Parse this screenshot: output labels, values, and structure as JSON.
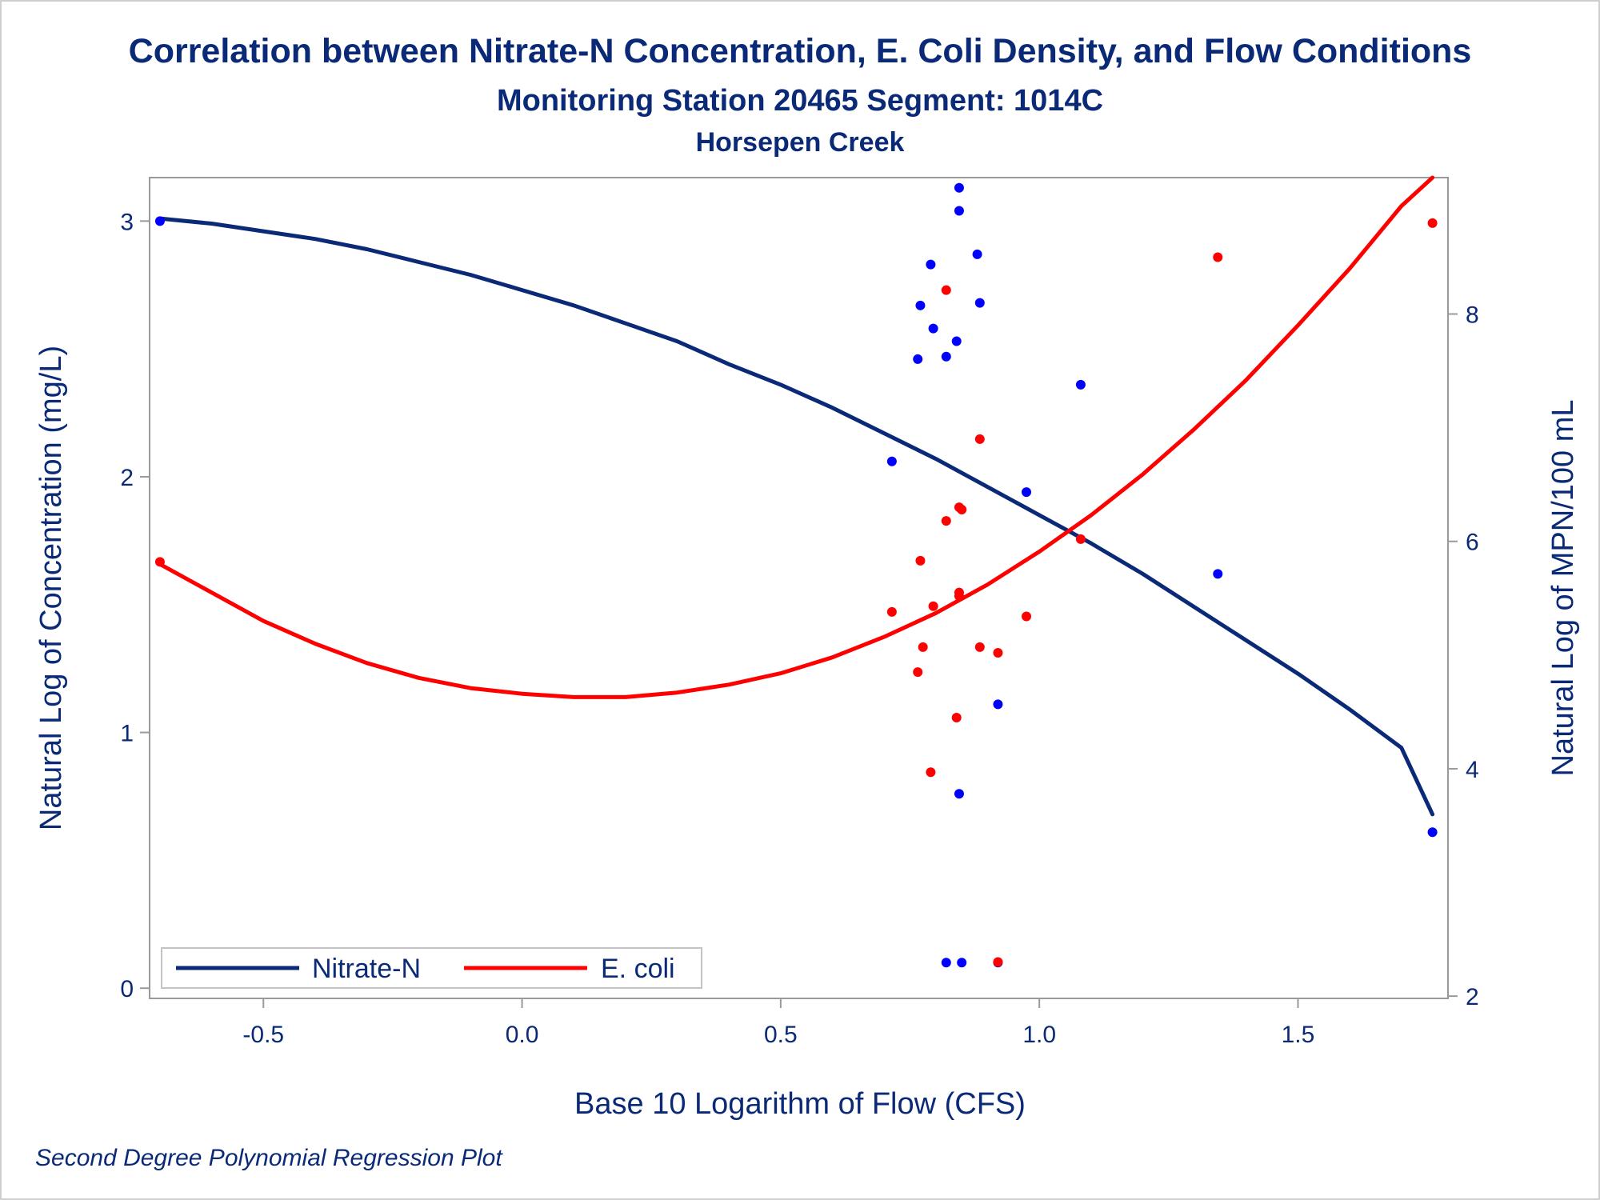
{
  "chart_data": {
    "type": "scatter",
    "title": "Correlation between Nitrate-N Concentration, E. Coli Density, and Flow Conditions",
    "subtitle": "Monitoring Station 20465 Segment: 1014C",
    "subtitle2": "Horsepen Creek",
    "footnote": "Second Degree Polynomial Regression Plot",
    "xlabel": "Base 10 Logarithm of Flow (CFS)",
    "ylabel": "Natural Log of Concentration (mg/L)",
    "y2label": "Natural Log of MPN/100 mL",
    "xlim": [
      -0.72,
      1.79
    ],
    "ylim": [
      -0.04,
      3.17
    ],
    "y2lim": [
      1.98,
      9.2
    ],
    "xticks": [
      "-0.5",
      "0.0",
      "0.5",
      "1.0",
      "1.5"
    ],
    "xtick_values": [
      -0.5,
      0.0,
      0.5,
      1.0,
      1.5
    ],
    "yticks": [
      "0",
      "1",
      "2",
      "3"
    ],
    "ytick_values": [
      0,
      1,
      2,
      3
    ],
    "y2ticks": [
      "2",
      "4",
      "6",
      "8"
    ],
    "y2tick_values": [
      2,
      4,
      6,
      8
    ],
    "grid": false,
    "legend_position": "bottom-left",
    "series": [
      {
        "name": "Nitrate-N",
        "axis": "left",
        "color": "#0a2a78",
        "point_color": "#0000ff",
        "curve": [
          [
            -0.7,
            3.01
          ],
          [
            -0.6,
            2.99
          ],
          [
            -0.5,
            2.96
          ],
          [
            -0.4,
            2.93
          ],
          [
            -0.3,
            2.89
          ],
          [
            -0.2,
            2.84
          ],
          [
            -0.1,
            2.79
          ],
          [
            0.0,
            2.73
          ],
          [
            0.1,
            2.67
          ],
          [
            0.2,
            2.6
          ],
          [
            0.3,
            2.53
          ],
          [
            0.4,
            2.44
          ],
          [
            0.5,
            2.36
          ],
          [
            0.6,
            2.27
          ],
          [
            0.7,
            2.17
          ],
          [
            0.8,
            2.07
          ],
          [
            0.9,
            1.96
          ],
          [
            1.0,
            1.85
          ],
          [
            1.1,
            1.74
          ],
          [
            1.2,
            1.62
          ],
          [
            1.3,
            1.49
          ],
          [
            1.4,
            1.36
          ],
          [
            1.5,
            1.23
          ],
          [
            1.6,
            1.09
          ],
          [
            1.7,
            0.94
          ],
          [
            1.76,
            0.68
          ]
        ],
        "points": [
          [
            -0.7,
            3.0
          ],
          [
            0.715,
            2.06
          ],
          [
            0.77,
            2.67
          ],
          [
            0.765,
            2.46
          ],
          [
            0.79,
            2.83
          ],
          [
            0.795,
            2.58
          ],
          [
            0.82,
            2.47
          ],
          [
            0.84,
            2.53
          ],
          [
            0.845,
            3.13
          ],
          [
            0.845,
            3.04
          ],
          [
            0.88,
            2.87
          ],
          [
            0.885,
            2.68
          ],
          [
            0.845,
            0.76
          ],
          [
            0.92,
            1.11
          ],
          [
            0.975,
            1.94
          ],
          [
            1.08,
            2.36
          ],
          [
            1.345,
            1.62
          ],
          [
            0.82,
            0.1
          ],
          [
            0.85,
            0.1
          ],
          [
            0.92,
            0.1
          ],
          [
            1.76,
            0.61
          ]
        ]
      },
      {
        "name": "E. coli",
        "axis": "right",
        "color": "#ff0000",
        "point_color": "#ff0000",
        "curve": [
          [
            -0.7,
            5.8
          ],
          [
            -0.6,
            5.55
          ],
          [
            -0.5,
            5.3
          ],
          [
            -0.4,
            5.1
          ],
          [
            -0.3,
            4.93
          ],
          [
            -0.2,
            4.8
          ],
          [
            -0.1,
            4.71
          ],
          [
            0.0,
            4.66
          ],
          [
            0.1,
            4.63
          ],
          [
            0.2,
            4.63
          ],
          [
            0.3,
            4.67
          ],
          [
            0.4,
            4.74
          ],
          [
            0.5,
            4.84
          ],
          [
            0.6,
            4.98
          ],
          [
            0.7,
            5.16
          ],
          [
            0.8,
            5.37
          ],
          [
            0.9,
            5.62
          ],
          [
            1.0,
            5.91
          ],
          [
            1.1,
            6.23
          ],
          [
            1.2,
            6.59
          ],
          [
            1.3,
            6.99
          ],
          [
            1.4,
            7.42
          ],
          [
            1.5,
            7.9
          ],
          [
            1.6,
            8.4
          ],
          [
            1.7,
            8.95
          ],
          [
            1.76,
            9.2
          ]
        ],
        "points": [
          [
            -0.7,
            5.82
          ],
          [
            0.715,
            5.38
          ],
          [
            0.765,
            4.85
          ],
          [
            0.77,
            5.83
          ],
          [
            0.775,
            5.07
          ],
          [
            0.79,
            3.97
          ],
          [
            0.795,
            5.43
          ],
          [
            0.82,
            6.18
          ],
          [
            0.82,
            8.21
          ],
          [
            0.84,
            4.45
          ],
          [
            0.845,
            6.3
          ],
          [
            0.85,
            6.28
          ],
          [
            0.845,
            5.55
          ],
          [
            0.845,
            5.52
          ],
          [
            0.885,
            6.9
          ],
          [
            0.885,
            5.07
          ],
          [
            0.92,
            5.02
          ],
          [
            0.92,
            2.3
          ],
          [
            0.975,
            5.34
          ],
          [
            1.08,
            6.02
          ],
          [
            1.345,
            8.5
          ],
          [
            1.76,
            8.8
          ]
        ]
      }
    ]
  }
}
